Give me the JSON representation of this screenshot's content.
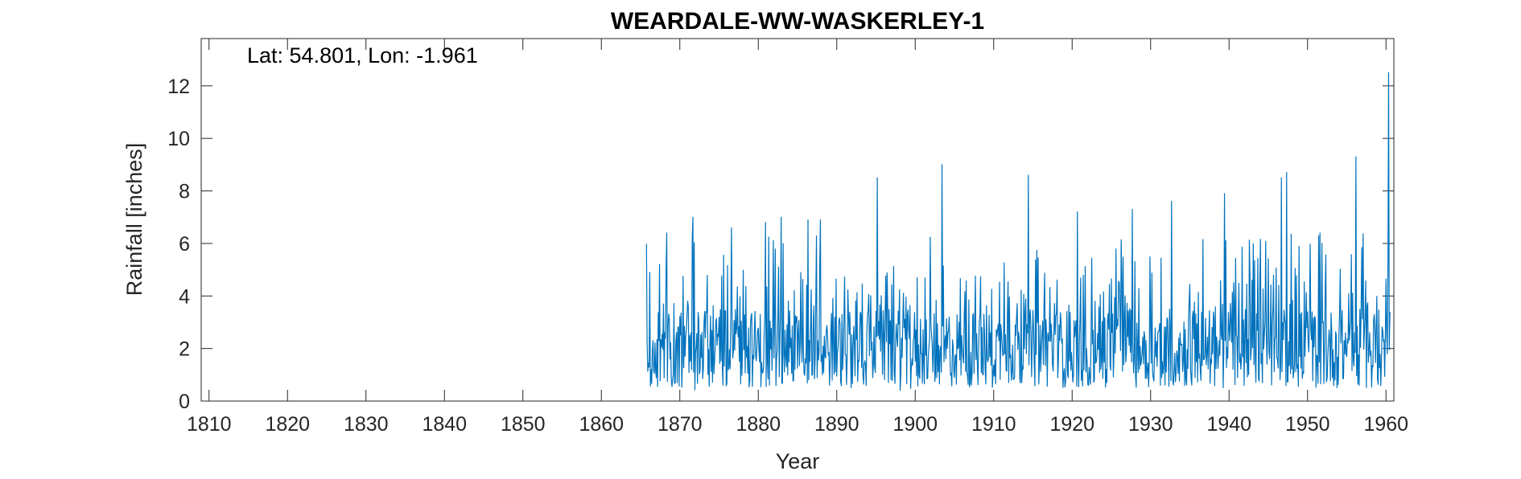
{
  "chart_data": {
    "type": "line",
    "title": "WEARDALE-WW-WASKERLEY-1",
    "annotation": "Lat: 54.801, Lon: -1.961",
    "xlabel": "Year",
    "ylabel": "Rainfall [inches]",
    "xlim": [
      1809,
      1961
    ],
    "ylim": [
      0,
      13.8
    ],
    "xticks": [
      1810,
      1820,
      1830,
      1840,
      1850,
      1860,
      1870,
      1880,
      1890,
      1900,
      1910,
      1920,
      1930,
      1940,
      1950,
      1960
    ],
    "yticks": [
      0,
      2,
      4,
      6,
      8,
      10,
      12
    ],
    "grid": false,
    "line_color": "#0072BD",
    "series": [
      {
        "time_resolution": "monthly",
        "x_start": 1865.75,
        "x_end": 1960.5,
        "approx_range": [
          0.2,
          12.5
        ],
        "approx_mean": 2.6,
        "key_points": [
          {
            "x": 1865.8,
            "y": 2.2
          },
          {
            "x": 1866.2,
            "y": 4.9
          },
          {
            "x": 1868.3,
            "y": 6.4
          },
          {
            "x": 1871.7,
            "y": 7.0
          },
          {
            "x": 1876.6,
            "y": 6.6
          },
          {
            "x": 1880.9,
            "y": 6.8
          },
          {
            "x": 1882.9,
            "y": 7.0
          },
          {
            "x": 1886.3,
            "y": 6.9
          },
          {
            "x": 1887.9,
            "y": 6.9
          },
          {
            "x": 1895.2,
            "y": 8.5
          },
          {
            "x": 1903.4,
            "y": 9.0
          },
          {
            "x": 1914.4,
            "y": 8.6
          },
          {
            "x": 1920.7,
            "y": 7.2
          },
          {
            "x": 1927.7,
            "y": 7.3
          },
          {
            "x": 1932.7,
            "y": 7.6
          },
          {
            "x": 1939.4,
            "y": 7.9
          },
          {
            "x": 1946.7,
            "y": 8.5
          },
          {
            "x": 1947.3,
            "y": 8.7
          },
          {
            "x": 1956.2,
            "y": 9.3
          },
          {
            "x": 1960.3,
            "y": 12.5
          }
        ]
      }
    ]
  }
}
